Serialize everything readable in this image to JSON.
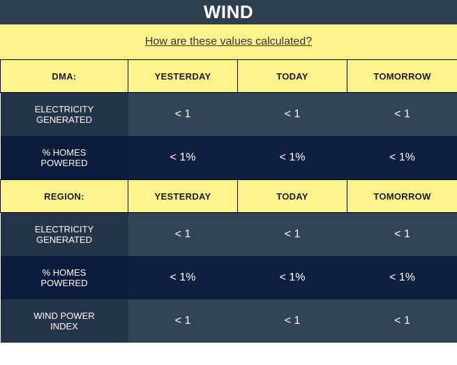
{
  "title": "WIND",
  "calc_link": "How are these values calculated?",
  "dma": {
    "header": [
      "DMA:",
      "YESTERDAY",
      "TODAY",
      "TOMORROW"
    ],
    "rows": [
      {
        "label_line1": "ELECTRICITY",
        "label_line2": "GENERATED",
        "values": [
          "< 1",
          "< 1",
          "< 1"
        ]
      },
      {
        "label_line1": "% HOMES",
        "label_line2": "POWERED",
        "values": [
          "< 1%",
          "< 1%",
          "< 1%"
        ]
      }
    ]
  },
  "region": {
    "header": [
      "REGION:",
      "YESTERDAY",
      "TODAY",
      "TOMORROW"
    ],
    "rows": [
      {
        "label_line1": "ELECTRICITY",
        "label_line2": "GENERATED",
        "values": [
          "< 1",
          "< 1",
          "< 1"
        ]
      },
      {
        "label_line1": "% HOMES",
        "label_line2": "POWERED",
        "values": [
          "< 1%",
          "< 1%",
          "< 1%"
        ]
      },
      {
        "label_line1": "WIND POWER",
        "label_line2": "INDEX",
        "values": [
          "< 1",
          "< 1",
          "< 1"
        ]
      }
    ]
  },
  "colors": {
    "title_bg": "#303f50",
    "header_bg": "#fef38c",
    "row_label_bg": "#253449",
    "row_value_bg": "#344457",
    "row_dark_bg": "#0f1f3f"
  }
}
